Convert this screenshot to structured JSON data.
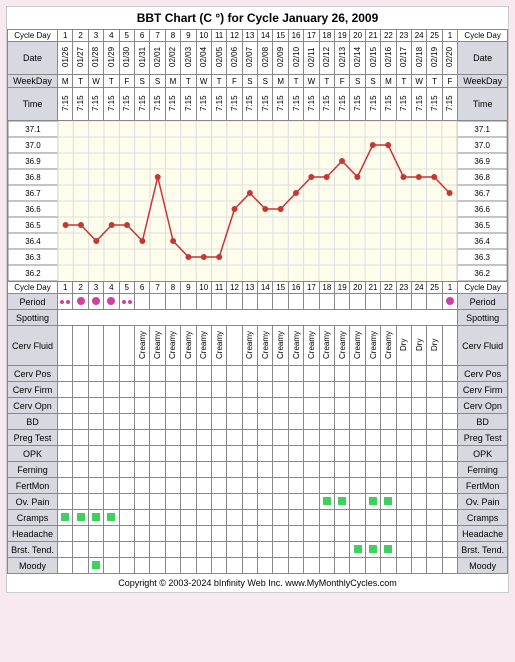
{
  "title": "BBT Chart (C °) for Cycle January 26, 2009",
  "labels": {
    "cycleDay": "Cycle Day",
    "date": "Date",
    "weekday": "WeekDay",
    "time": "Time",
    "period": "Period",
    "spotting": "Spotting",
    "cervFluid": "Cerv Fluid",
    "cervPos": "Cerv Pos",
    "cervFirm": "Cerv Firm",
    "cervOpn": "Cerv Opn",
    "bd": "BD",
    "pregTest": "Preg Test",
    "opk": "OPK",
    "ferning": "Ferning",
    "fertMon": "FertMon",
    "ovPain": "Ov. Pain",
    "cramps": "Cramps",
    "headache": "Headache",
    "brstTend": "Brst. Tend.",
    "moody": "Moody"
  },
  "footer": "Copyright © 2003-2024 bInfinity Web Inc.    www.MyMonthlyCycles.com",
  "cycleDays": [
    "1",
    "2",
    "3",
    "4",
    "5",
    "6",
    "7",
    "8",
    "9",
    "10",
    "11",
    "12",
    "13",
    "14",
    "15",
    "16",
    "17",
    "18",
    "19",
    "20",
    "21",
    "22",
    "23",
    "24",
    "25",
    "1"
  ],
  "dates": [
    "01/26",
    "01/27",
    "01/28",
    "01/29",
    "01/30",
    "01/31",
    "02/01",
    "02/02",
    "02/03",
    "02/04",
    "02/05",
    "02/06",
    "02/07",
    "02/08",
    "02/09",
    "02/10",
    "02/11",
    "02/12",
    "02/13",
    "02/14",
    "02/15",
    "02/16",
    "02/17",
    "02/18",
    "02/19",
    "02/20"
  ],
  "weekdays": [
    "M",
    "T",
    "W",
    "T",
    "F",
    "S",
    "S",
    "M",
    "T",
    "W",
    "T",
    "F",
    "S",
    "S",
    "M",
    "T",
    "W",
    "T",
    "F",
    "S",
    "S",
    "M",
    "T",
    "W",
    "T",
    "F"
  ],
  "times": [
    "7:15",
    "7:15",
    "7:15",
    "7:15",
    "7:15",
    "7:15",
    "7:15",
    "7:15",
    "7:15",
    "7:15",
    "7:15",
    "7:15",
    "7:15",
    "7:15",
    "7:15",
    "7:15",
    "7:15",
    "7:15",
    "7:15",
    "7:15",
    "7:15",
    "7:15",
    "7:15",
    "7:15",
    "7:15",
    "7:15"
  ],
  "tempScale": [
    "37.1",
    "37.0",
    "36.9",
    "36.8",
    "36.7",
    "36.6",
    "36.5",
    "36.4",
    "36.3",
    "36.2"
  ],
  "temps": [
    36.5,
    36.5,
    36.4,
    36.5,
    36.5,
    36.4,
    36.8,
    36.4,
    36.3,
    36.3,
    36.3,
    36.6,
    36.7,
    36.6,
    36.6,
    36.7,
    36.8,
    36.8,
    36.9,
    36.8,
    37.0,
    37.0,
    36.8,
    36.8,
    36.8,
    36.7
  ],
  "chartColors": {
    "line": "#cc3333",
    "point": "#cc3333",
    "bg": "#fffeed",
    "grid": "#dddddd"
  },
  "period": [
    "spot",
    "dot",
    "dot",
    "dot",
    "spot",
    "",
    "",
    "",
    "",
    "",
    "",
    "",
    "",
    "",
    "",
    "",
    "",
    "",
    "",
    "",
    "",
    "",
    "",
    "",
    "",
    "dot"
  ],
  "cervFluid": [
    "",
    "",
    "",
    "",
    "",
    "Creamy",
    "Creamy",
    "Creamy",
    "Creamy",
    "Creamy",
    "Creamy",
    "",
    "Creamy",
    "Creamy",
    "Creamy",
    "Creamy",
    "Creamy",
    "Creamy",
    "Creamy",
    "Creamy",
    "Creamy",
    "Creamy",
    "Dry",
    "Dry",
    "Dry",
    ""
  ],
  "ovPain": [
    "",
    "",
    "",
    "",
    "",
    "",
    "",
    "",
    "",
    "",
    "",
    "",
    "",
    "",
    "",
    "",
    "",
    "1",
    "1",
    "",
    "1",
    "1",
    "",
    "",
    "",
    ""
  ],
  "cramps": [
    "1",
    "1",
    "1",
    "1",
    "",
    "",
    "",
    "",
    "",
    "",
    "",
    "",
    "",
    "",
    "",
    "",
    "",
    "",
    "",
    "",
    "",
    "",
    "",
    "",
    "",
    ""
  ],
  "brstTend": [
    "",
    "",
    "",
    "",
    "",
    "",
    "",
    "",
    "",
    "",
    "",
    "",
    "",
    "",
    "",
    "",
    "",
    "",
    "",
    "1",
    "1",
    "1",
    "",
    "",
    "",
    ""
  ],
  "moody": [
    "",
    "",
    "1",
    "",
    "",
    "",
    "",
    "",
    "",
    "",
    "",
    "",
    "",
    "",
    "",
    "",
    "",
    "",
    "",
    "",
    "",
    "",
    "",
    "",
    "",
    ""
  ]
}
